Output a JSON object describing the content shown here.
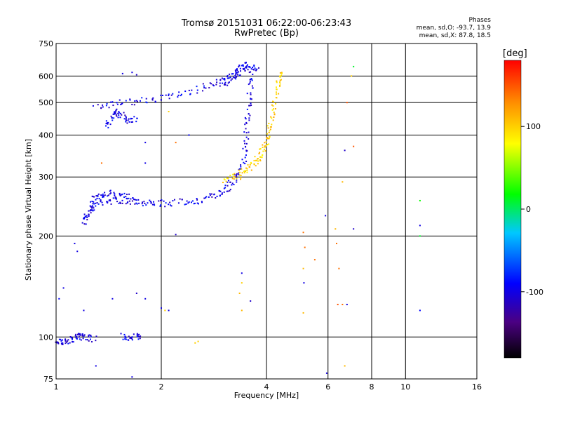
{
  "title_line1": "Tromsø 20151031 06:22:00-06:23:43",
  "title_line2": "RwPretec (Bp)",
  "stats": {
    "heading": "Phases",
    "o_mode": "mean, sd,O: -93.7, 13.9",
    "x_mode": "mean, sd,X: 87.8, 18.5"
  },
  "colorbar": {
    "unit": "[deg]",
    "ticks": [
      {
        "value": 100,
        "label": "100"
      },
      {
        "value": 0,
        "label": "0"
      },
      {
        "value": -100,
        "label": "-100"
      }
    ],
    "range": [
      -180,
      180
    ]
  },
  "chart_data": {
    "type": "scatter",
    "title": "Tromsø 20151031 06:22:00-06:23:43",
    "subtitle": "RwPretec (Bp)",
    "xlabel": "Frequency [MHz]",
    "ylabel": "Stationary phase Virtual Height [km]",
    "xscale": "log",
    "yscale": "log",
    "xlim": [
      1,
      16
    ],
    "ylim": [
      75,
      750
    ],
    "xticks": [
      {
        "value": 1,
        "label": "1"
      },
      {
        "value": 2,
        "label": "2"
      },
      {
        "value": 4,
        "label": "4"
      },
      {
        "value": 6,
        "label": "6"
      },
      {
        "value": 8,
        "label": "8"
      },
      {
        "value": 10,
        "label": "10"
      },
      {
        "value": 16,
        "label": "16"
      }
    ],
    "yticks": [
      {
        "value": 75,
        "label": "75"
      },
      {
        "value": 100,
        "label": "100"
      },
      {
        "value": 200,
        "label": "200"
      },
      {
        "value": 300,
        "label": "300"
      },
      {
        "value": 400,
        "label": "400"
      },
      {
        "value": 500,
        "label": "500"
      },
      {
        "value": 600,
        "label": "600"
      },
      {
        "value": 750,
        "label": "750"
      }
    ],
    "grid": true,
    "traces": [
      {
        "mode": "O-trace",
        "phase": -100,
        "points": [
          [
            1.22,
            230
          ],
          [
            1.3,
            250
          ],
          [
            1.45,
            255
          ],
          [
            1.6,
            255
          ],
          [
            1.8,
            252
          ],
          [
            2.0,
            250
          ],
          [
            2.3,
            252
          ],
          [
            2.6,
            256
          ],
          [
            2.9,
            265
          ],
          [
            3.1,
            280
          ],
          [
            3.3,
            300
          ],
          [
            3.45,
            340
          ],
          [
            3.5,
            400
          ],
          [
            3.55,
            480
          ],
          [
            3.6,
            560
          ],
          [
            3.65,
            630
          ]
        ]
      },
      {
        "mode": "O-trace-low",
        "phase": -100,
        "points": [
          [
            1.2,
            220
          ],
          [
            1.25,
            240
          ],
          [
            1.3,
            262
          ],
          [
            1.4,
            268
          ],
          [
            1.55,
            262
          ],
          [
            1.7,
            258
          ]
        ]
      },
      {
        "mode": "X-trace",
        "phase": 100,
        "points": [
          [
            3.0,
            295
          ],
          [
            3.3,
            300
          ],
          [
            3.5,
            315
          ],
          [
            3.7,
            330
          ],
          [
            3.85,
            350
          ],
          [
            4.0,
            380
          ],
          [
            4.1,
            420
          ],
          [
            4.2,
            480
          ],
          [
            4.3,
            560
          ],
          [
            4.4,
            630
          ]
        ]
      },
      {
        "mode": "F2-upper",
        "phase": -100,
        "points": [
          [
            1.3,
            480
          ],
          [
            1.5,
            500
          ],
          [
            1.8,
            505
          ],
          [
            2.1,
            520
          ],
          [
            2.5,
            545
          ],
          [
            2.9,
            570
          ],
          [
            3.2,
            600
          ],
          [
            3.5,
            625
          ],
          [
            3.8,
            640
          ]
        ]
      },
      {
        "mode": "F2-upper-dense",
        "phase": -100,
        "points": [
          [
            3.0,
            560
          ],
          [
            3.2,
            600
          ],
          [
            3.35,
            640
          ],
          [
            3.5,
            650
          ]
        ]
      },
      {
        "mode": "spread-mid",
        "phase": -100,
        "points": [
          [
            1.4,
            420
          ],
          [
            1.45,
            460
          ],
          [
            1.5,
            470
          ],
          [
            1.6,
            440
          ],
          [
            1.7,
            450
          ]
        ]
      },
      {
        "mode": "low-echo",
        "phase": -100,
        "points": [
          [
            1.0,
            97
          ],
          [
            1.05,
            97
          ],
          [
            1.1,
            98
          ],
          [
            1.15,
            100
          ],
          [
            1.2,
            100
          ],
          [
            1.3,
            98
          ]
        ]
      },
      {
        "mode": "low-echo-2",
        "phase": -100,
        "points": [
          [
            1.55,
            100
          ],
          [
            1.65,
            100
          ],
          [
            1.75,
            100
          ]
        ]
      }
    ],
    "scatter_points": [
      {
        "x": 1.55,
        "y": 610,
        "phase": -100
      },
      {
        "x": 1.65,
        "y": 615,
        "phase": -100
      },
      {
        "x": 1.7,
        "y": 605,
        "phase": -110
      },
      {
        "x": 1.13,
        "y": 190,
        "phase": -100
      },
      {
        "x": 1.15,
        "y": 180,
        "phase": -100
      },
      {
        "x": 1.02,
        "y": 130,
        "phase": -90
      },
      {
        "x": 1.05,
        "y": 140,
        "phase": -100
      },
      {
        "x": 1.2,
        "y": 120,
        "phase": -100
      },
      {
        "x": 1.45,
        "y": 130,
        "phase": -100
      },
      {
        "x": 1.7,
        "y": 135,
        "phase": -110
      },
      {
        "x": 1.8,
        "y": 130,
        "phase": -100
      },
      {
        "x": 2.0,
        "y": 122,
        "phase": -100
      },
      {
        "x": 2.05,
        "y": 120,
        "phase": 100
      },
      {
        "x": 2.1,
        "y": 120,
        "phase": -100
      },
      {
        "x": 2.5,
        "y": 96,
        "phase": 100
      },
      {
        "x": 2.55,
        "y": 97,
        "phase": 100
      },
      {
        "x": 1.3,
        "y": 82,
        "phase": -100
      },
      {
        "x": 1.65,
        "y": 76,
        "phase": -100
      },
      {
        "x": 2.2,
        "y": 202,
        "phase": -110
      },
      {
        "x": 3.4,
        "y": 155,
        "phase": -100
      },
      {
        "x": 3.6,
        "y": 128,
        "phase": -110
      },
      {
        "x": 3.4,
        "y": 145,
        "phase": 100
      },
      {
        "x": 3.35,
        "y": 135,
        "phase": 110
      },
      {
        "x": 3.4,
        "y": 120,
        "phase": 110
      },
      {
        "x": 5.1,
        "y": 205,
        "phase": 140
      },
      {
        "x": 5.15,
        "y": 185,
        "phase": 140
      },
      {
        "x": 5.1,
        "y": 160,
        "phase": 110
      },
      {
        "x": 5.12,
        "y": 145,
        "phase": -100
      },
      {
        "x": 5.1,
        "y": 118,
        "phase": 110
      },
      {
        "x": 5.5,
        "y": 170,
        "phase": 140
      },
      {
        "x": 5.9,
        "y": 230,
        "phase": -100
      },
      {
        "x": 5.95,
        "y": 78,
        "phase": -100
      },
      {
        "x": 6.3,
        "y": 210,
        "phase": 110
      },
      {
        "x": 6.35,
        "y": 190,
        "phase": 140
      },
      {
        "x": 6.45,
        "y": 160,
        "phase": 140
      },
      {
        "x": 6.4,
        "y": 125,
        "phase": 150
      },
      {
        "x": 6.6,
        "y": 125,
        "phase": 140
      },
      {
        "x": 6.8,
        "y": 125,
        "phase": -100
      },
      {
        "x": 6.6,
        "y": 290,
        "phase": 110
      },
      {
        "x": 6.7,
        "y": 360,
        "phase": -110
      },
      {
        "x": 6.8,
        "y": 500,
        "phase": 150
      },
      {
        "x": 7.0,
        "y": 600,
        "phase": 100
      },
      {
        "x": 7.1,
        "y": 640,
        "phase": 10
      },
      {
        "x": 7.1,
        "y": 370,
        "phase": 150
      },
      {
        "x": 7.1,
        "y": 210,
        "phase": -110
      },
      {
        "x": 6.7,
        "y": 82,
        "phase": 110
      },
      {
        "x": 11.0,
        "y": 255,
        "phase": 20
      },
      {
        "x": 11.0,
        "y": 215,
        "phase": -100
      },
      {
        "x": 11.0,
        "y": 200,
        "phase": 10
      },
      {
        "x": 11.0,
        "y": 120,
        "phase": -90
      },
      {
        "x": 2.4,
        "y": 400,
        "phase": -90
      },
      {
        "x": 2.1,
        "y": 470,
        "phase": 100
      },
      {
        "x": 1.35,
        "y": 330,
        "phase": 140
      },
      {
        "x": 1.8,
        "y": 330,
        "phase": -100
      },
      {
        "x": 1.8,
        "y": 380,
        "phase": -100
      },
      {
        "x": 2.2,
        "y": 380,
        "phase": 140
      }
    ]
  }
}
